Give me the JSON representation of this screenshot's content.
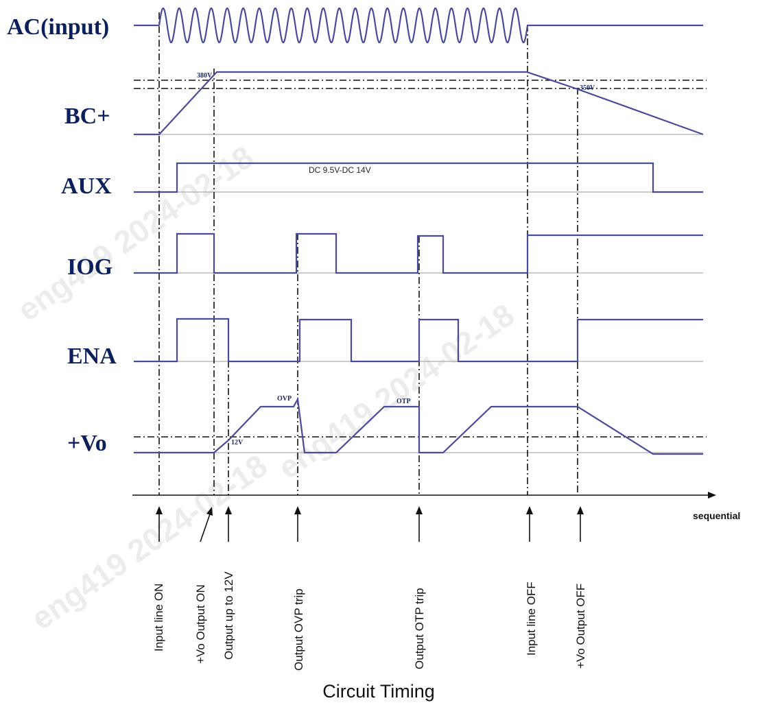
{
  "signals": {
    "ac": "AC(input)",
    "bc": "BC+",
    "aux": "AUX",
    "iog": "IOG",
    "ena": "ENA",
    "vo": "+Vo"
  },
  "markers": {
    "bc_high": "380V",
    "bc_low": "350V",
    "vo_ovp": "OVP",
    "vo_otp": "OTP",
    "vo_12v": "12V"
  },
  "aux_note": "DC 9.5V-DC 14V",
  "axis_label": "sequential",
  "events": [
    "Input line ON",
    "+Vo Output ON",
    "Output up to 12V",
    "Output OVP trip",
    "Output OTP trip",
    "Input line OFF",
    "+Vo Output OFF"
  ],
  "caption": "Circuit Timing",
  "watermark": "eng419 2024-02-18",
  "colors": {
    "trace": "#4a4a9a",
    "signal_label": "#0b1f5c",
    "watermark": "#ececec"
  }
}
